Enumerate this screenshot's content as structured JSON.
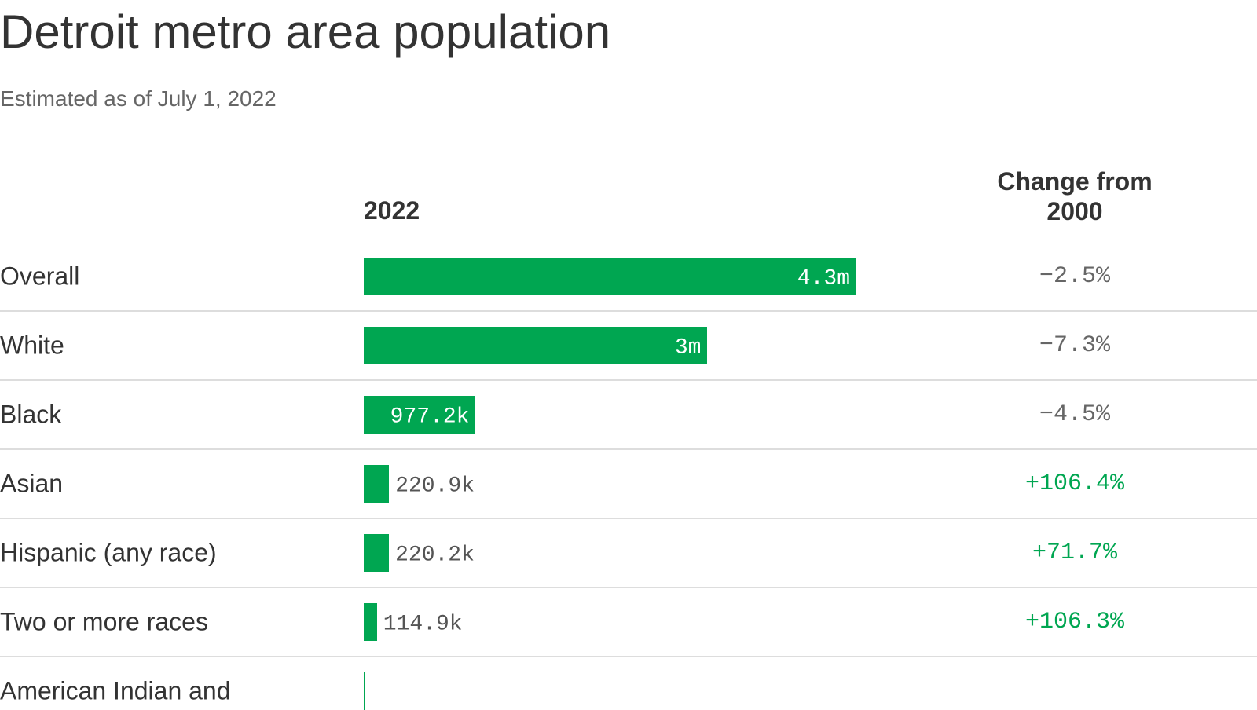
{
  "chart_data": {
    "type": "bar",
    "title": "Detroit metro area population",
    "subtitle": "Estimated as of July 1, 2022",
    "value_header": "2022",
    "change_header": "Change from 2000",
    "color": "#00a651",
    "categories": [
      "Overall",
      "White",
      "Black",
      "Asian",
      "Hispanic (any race)",
      "Two or more races",
      "American Indian and"
    ],
    "values": [
      4300000,
      3000000,
      977200,
      220900,
      220200,
      114900,
      13000
    ],
    "value_labels": [
      "4.3m",
      "3m",
      "977.2k",
      "220.9k",
      "220.2k",
      "114.9k",
      null
    ],
    "change": {
      "values": [
        -2.5,
        -7.3,
        -4.5,
        106.4,
        71.7,
        106.3,
        null
      ],
      "value_labels": [
        "−2.5%",
        "−7.3%",
        "−4.5%",
        "+106.4%",
        "+71.7%",
        "+106.3%",
        null
      ]
    }
  }
}
